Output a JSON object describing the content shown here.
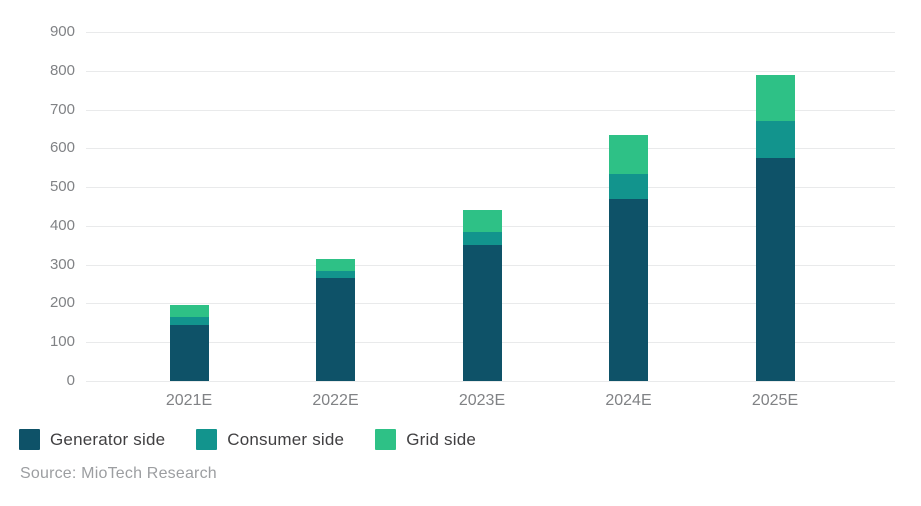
{
  "chart_data": {
    "type": "bar",
    "stacked": true,
    "title": "",
    "xlabel": "",
    "ylabel": "",
    "categories": [
      "2021E",
      "2022E",
      "2023E",
      "2024E",
      "2025E"
    ],
    "series": [
      {
        "name": "Generator side",
        "color": "#0e5268",
        "values": [
          145,
          265,
          350,
          470,
          575
        ]
      },
      {
        "name": "Consumer side",
        "color": "#12948d",
        "values": [
          20,
          20,
          35,
          65,
          95
        ]
      },
      {
        "name": "Grid side",
        "color": "#2ec186",
        "values": [
          30,
          30,
          55,
          100,
          120
        ]
      }
    ],
    "totals": [
      195,
      315,
      440,
      635,
      790
    ],
    "ylim": [
      0,
      900
    ],
    "yticks": [
      0,
      100,
      200,
      300,
      400,
      500,
      600,
      700,
      800,
      900
    ],
    "grid": "horizontal",
    "legend_position": "bottom-left"
  },
  "source": {
    "label": "Source: MioTech Research"
  },
  "colors": {
    "background": "#ffffff",
    "grid_line": "#e9eaeb",
    "axis_text": "#808285",
    "legend_text": "#414042",
    "source_text": "#9c9ea1"
  }
}
